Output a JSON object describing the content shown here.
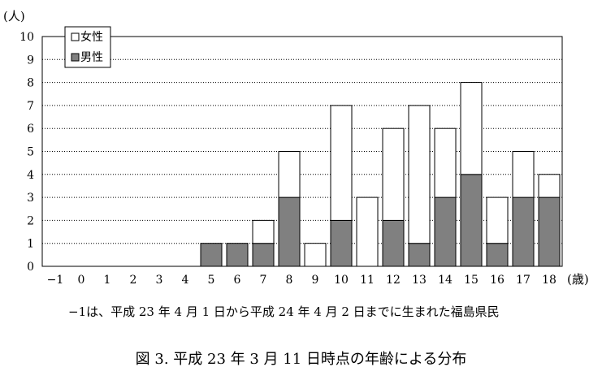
{
  "chart_data": {
    "type": "bar",
    "stacked": true,
    "ylabel": "(人)",
    "xlabel": "(歳)",
    "categories": [
      "−1",
      "0",
      "1",
      "2",
      "3",
      "4",
      "5",
      "6",
      "7",
      "8",
      "9",
      "10",
      "11",
      "12",
      "13",
      "14",
      "15",
      "16",
      "17",
      "18"
    ],
    "yticks": [
      "0",
      "1",
      "2",
      "3",
      "4",
      "5",
      "6",
      "7",
      "8",
      "9",
      "10"
    ],
    "ylim": [
      0,
      10
    ],
    "series": [
      {
        "name": "男性",
        "color": "#808080",
        "values": [
          0,
          0,
          0,
          0,
          0,
          0,
          1,
          1,
          1,
          3,
          0,
          2,
          0,
          2,
          1,
          3,
          4,
          1,
          3,
          3
        ]
      },
      {
        "name": "女性",
        "color": "#ffffff",
        "values": [
          0,
          0,
          0,
          0,
          0,
          0,
          0,
          0,
          1,
          2,
          1,
          5,
          3,
          4,
          6,
          3,
          4,
          2,
          2,
          1
        ]
      }
    ],
    "legend": {
      "position": "top-left",
      "entries": [
        {
          "label": "女性",
          "color": "#ffffff"
        },
        {
          "label": "男性",
          "color": "#808080"
        }
      ]
    },
    "grid": true
  },
  "note": "−1は、平成 23 年 4 月 1 日から平成 24 年 4 月 2 日までに生まれた福島県民",
  "caption": "図 3. 平成 23 年 3 月 11 日時点の年齢による分布"
}
